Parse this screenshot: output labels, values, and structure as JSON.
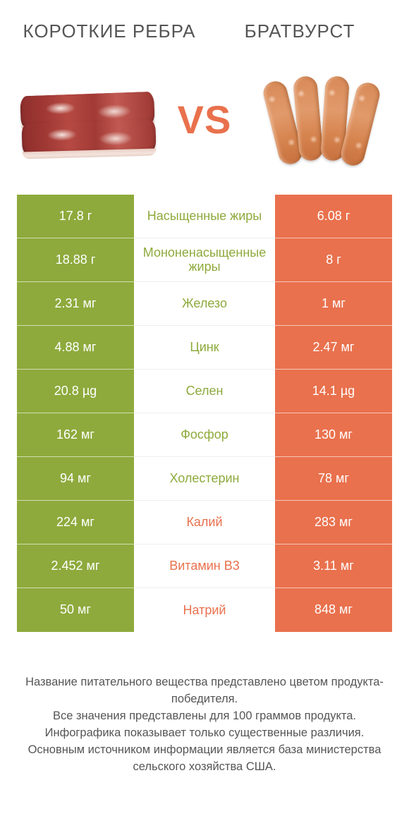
{
  "colors": {
    "green": "#8eaa3c",
    "orange": "#e9714d",
    "text": "#555555",
    "white": "#ffffff"
  },
  "header": {
    "left_title": "КОРОТКИЕ РЕБРА",
    "right_title": "БРАТВУРСТ",
    "vs_label": "VS"
  },
  "rows": [
    {
      "left": "17.8 г",
      "mid": "Насыщенные жиры",
      "right": "6.08 г",
      "winner": "left"
    },
    {
      "left": "18.88 г",
      "mid": "Мононенасыщенные жиры",
      "right": "8 г",
      "winner": "left"
    },
    {
      "left": "2.31 мг",
      "mid": "Железо",
      "right": "1 мг",
      "winner": "left"
    },
    {
      "left": "4.88 мг",
      "mid": "Цинк",
      "right": "2.47 мг",
      "winner": "left"
    },
    {
      "left": "20.8 µg",
      "mid": "Селен",
      "right": "14.1 µg",
      "winner": "left"
    },
    {
      "left": "162 мг",
      "mid": "Фосфор",
      "right": "130 мг",
      "winner": "left"
    },
    {
      "left": "94 мг",
      "mid": "Холестерин",
      "right": "78 мг",
      "winner": "left"
    },
    {
      "left": "224 мг",
      "mid": "Калий",
      "right": "283 мг",
      "winner": "right"
    },
    {
      "left": "2.452 мг",
      "mid": "Витамин B3",
      "right": "3.11 мг",
      "winner": "right"
    },
    {
      "left": "50 мг",
      "mid": "Натрий",
      "right": "848 мг",
      "winner": "right"
    }
  ],
  "footer": {
    "line1": "Название питательного вещества представлено цветом продукта-победителя.",
    "line2": "Все значения представлены для 100 граммов продукта.",
    "line3": "Инфографика показывает только существенные различия.",
    "line4": "Основным источником информации является база министерства сельского хозяйства США."
  }
}
